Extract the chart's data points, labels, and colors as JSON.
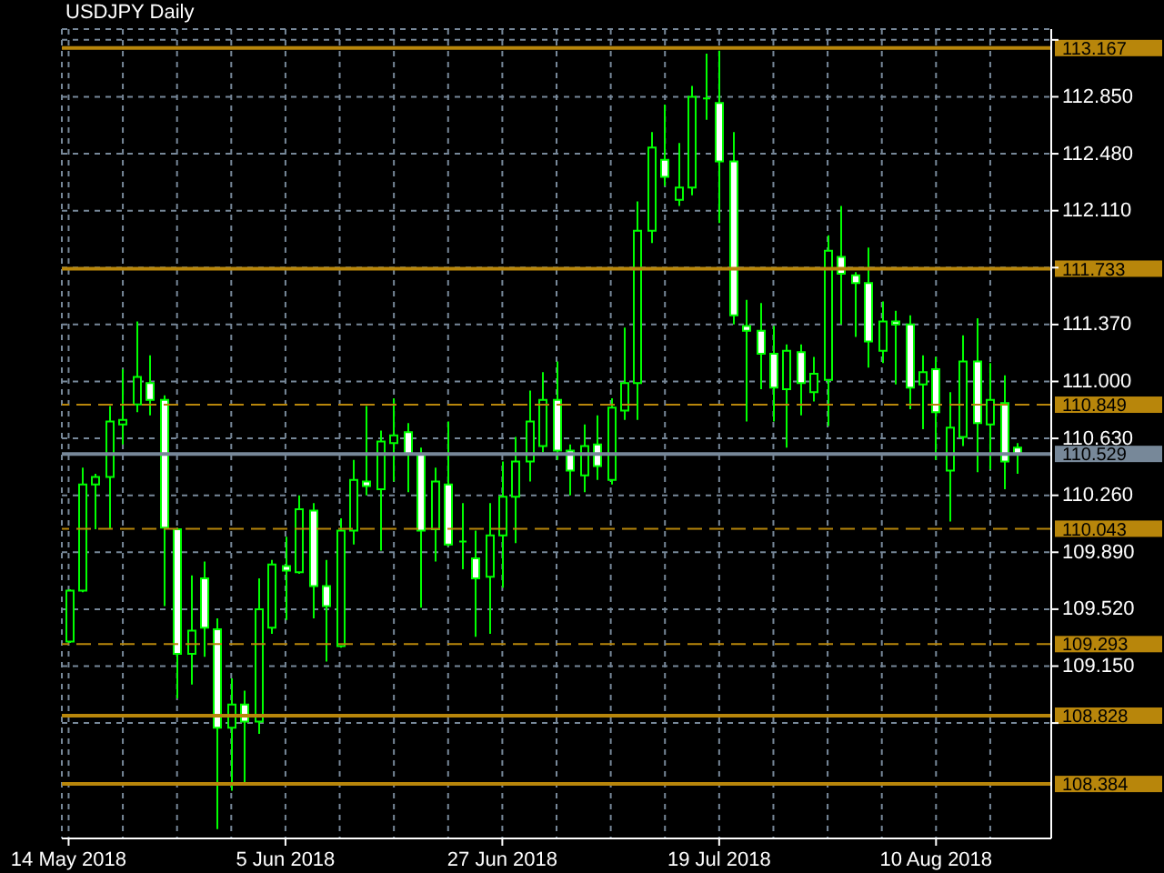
{
  "chart_data": {
    "type": "candlestick",
    "title": "USDJPY Daily",
    "categories": [
      "14 May 2018",
      null,
      null,
      null,
      null,
      null,
      null,
      null,
      null,
      null,
      null,
      null,
      null,
      null,
      null,
      null,
      "5 Jun 2018",
      null,
      null,
      null,
      null,
      null,
      null,
      null,
      null,
      null,
      null,
      null,
      null,
      null,
      null,
      null,
      "27 Jun 2018",
      null,
      null,
      null,
      null,
      null,
      null,
      null,
      null,
      null,
      null,
      null,
      null,
      null,
      null,
      null,
      "19 Jul 2018",
      null,
      null,
      null,
      null,
      null,
      null,
      null,
      null,
      null,
      null,
      null,
      null,
      null,
      null,
      null,
      "10 Aug 2018",
      null,
      null,
      null,
      null,
      null,
      null
    ],
    "ohlc": [
      [
        109.31,
        109.65,
        109.3,
        109.64
      ],
      [
        109.64,
        110.44,
        109.63,
        110.33
      ],
      [
        110.33,
        110.4,
        110.04,
        110.38
      ],
      [
        110.38,
        110.84,
        110.04,
        110.74
      ],
      [
        110.72,
        111.08,
        110.59,
        110.75
      ],
      [
        110.85,
        111.39,
        110.8,
        111.03
      ],
      [
        110.99,
        111.17,
        110.78,
        110.88
      ],
      [
        110.88,
        110.91,
        109.54,
        110.05
      ],
      [
        110.04,
        110.05,
        108.94,
        109.23
      ],
      [
        109.23,
        109.74,
        109.03,
        109.38
      ],
      [
        109.72,
        109.83,
        109.21,
        109.4
      ],
      [
        109.39,
        109.46,
        108.09,
        108.75
      ],
      [
        108.75,
        109.07,
        108.34,
        108.9
      ],
      [
        108.9,
        108.99,
        108.39,
        108.79
      ],
      [
        108.79,
        109.72,
        108.71,
        109.52
      ],
      [
        109.4,
        109.84,
        109.36,
        109.81
      ],
      [
        109.8,
        109.99,
        109.45,
        109.77
      ],
      [
        109.76,
        110.26,
        109.75,
        110.17
      ],
      [
        110.16,
        110.21,
        109.46,
        109.67
      ],
      [
        109.67,
        109.84,
        109.18,
        109.54
      ],
      [
        109.28,
        110.11,
        109.27,
        110.03
      ],
      [
        110.03,
        110.49,
        109.94,
        110.36
      ],
      [
        110.35,
        110.84,
        110.26,
        110.32
      ],
      [
        110.3,
        110.68,
        109.9,
        110.61
      ],
      [
        110.6,
        110.89,
        110.35,
        110.65
      ],
      [
        110.67,
        110.73,
        110.28,
        110.53
      ],
      [
        110.53,
        110.57,
        109.53,
        110.03
      ],
      [
        110.04,
        110.44,
        109.83,
        110.35
      ],
      [
        110.33,
        110.74,
        109.93,
        109.94
      ],
      [
        109.96,
        110.21,
        109.78,
        109.96
      ],
      [
        109.85,
        110.03,
        109.34,
        109.72
      ],
      [
        109.73,
        110.21,
        109.36,
        110.0
      ],
      [
        110.0,
        110.48,
        109.66,
        110.25
      ],
      [
        110.25,
        110.64,
        109.95,
        110.48
      ],
      [
        110.48,
        110.94,
        110.35,
        110.74
      ],
      [
        110.58,
        111.06,
        110.54,
        110.88
      ],
      [
        110.88,
        111.13,
        110.49,
        110.55
      ],
      [
        110.55,
        110.59,
        110.26,
        110.42
      ],
      [
        110.39,
        110.72,
        110.28,
        110.58
      ],
      [
        110.59,
        110.78,
        110.36,
        110.45
      ],
      [
        110.36,
        110.89,
        110.33,
        110.83
      ],
      [
        110.81,
        111.35,
        110.75,
        110.99
      ],
      [
        110.99,
        112.17,
        110.75,
        111.98
      ],
      [
        111.98,
        112.62,
        111.9,
        112.52
      ],
      [
        112.44,
        112.8,
        112.27,
        112.33
      ],
      [
        112.18,
        112.55,
        112.14,
        112.26
      ],
      [
        112.26,
        112.92,
        112.21,
        112.85
      ],
      [
        112.84,
        113.13,
        112.7,
        112.84
      ],
      [
        112.81,
        113.15,
        112.03,
        112.43
      ],
      [
        112.43,
        112.62,
        111.37,
        111.43
      ],
      [
        111.36,
        111.53,
        110.74,
        111.33
      ],
      [
        111.33,
        111.51,
        110.95,
        111.18
      ],
      [
        111.18,
        111.36,
        110.74,
        110.96
      ],
      [
        110.95,
        111.24,
        110.57,
        111.2
      ],
      [
        111.19,
        111.24,
        110.78,
        110.99
      ],
      [
        110.93,
        111.16,
        110.87,
        111.05
      ],
      [
        111.01,
        111.95,
        110.71,
        111.85
      ],
      [
        111.81,
        112.14,
        111.37,
        111.7
      ],
      [
        111.69,
        111.71,
        111.29,
        111.64
      ],
      [
        111.64,
        111.87,
        111.09,
        111.26
      ],
      [
        111.2,
        111.52,
        111.12,
        111.39
      ],
      [
        111.39,
        111.46,
        110.98,
        111.37
      ],
      [
        111.37,
        111.43,
        110.82,
        110.96
      ],
      [
        110.98,
        111.17,
        110.69,
        111.06
      ],
      [
        111.08,
        111.16,
        110.49,
        110.8
      ],
      [
        110.42,
        110.93,
        110.09,
        110.7
      ],
      [
        110.64,
        111.3,
        110.58,
        111.13
      ],
      [
        111.13,
        111.41,
        110.41,
        110.73
      ],
      [
        110.72,
        111.12,
        110.43,
        110.88
      ],
      [
        110.86,
        111.04,
        110.3,
        110.48
      ],
      [
        110.57,
        110.6,
        110.4,
        110.53
      ]
    ],
    "color": "#00ff00",
    "ylim": [
      108.03,
      113.29
    ],
    "yticks": [
      {
        "value": 108.78,
        "label": null
      },
      {
        "value": 109.15,
        "label": "109.150"
      },
      {
        "value": 109.52,
        "label": "109.520"
      },
      {
        "value": 109.89,
        "label": "109.890"
      },
      {
        "value": 110.26,
        "label": "110.260"
      },
      {
        "value": 110.63,
        "label": "110.630"
      },
      {
        "value": 111.0,
        "label": "111.000"
      },
      {
        "value": 111.37,
        "label": "111.370"
      },
      {
        "value": 111.74,
        "label": null
      },
      {
        "value": 112.11,
        "label": "112.110"
      },
      {
        "value": 112.48,
        "label": "112.480"
      },
      {
        "value": 112.85,
        "label": "112.850"
      },
      {
        "value": 113.22,
        "label": null
      }
    ],
    "grid": true,
    "ref_lines": [
      {
        "axis": "y",
        "value": 113.167,
        "label": "113.167",
        "color": "#b8860b",
        "line_style": "solid"
      },
      {
        "axis": "y",
        "value": 111.733,
        "label": "111.733",
        "color": "#b8860b",
        "line_style": "solid"
      },
      {
        "axis": "y",
        "value": 110.849,
        "label": "110.849",
        "color": "#b8860b",
        "line_style": "dashed"
      },
      {
        "axis": "y",
        "value": 110.529,
        "label": "110.529",
        "color": "#778899",
        "line_style": "solid"
      },
      {
        "axis": "y",
        "value": 110.043,
        "label": "110.043",
        "color": "#b8860b",
        "line_style": "dashed"
      },
      {
        "axis": "y",
        "value": 109.293,
        "label": "109.293",
        "color": "#b8860b",
        "line_style": "dashed"
      },
      {
        "axis": "y",
        "value": 108.828,
        "label": "108.828",
        "color": "#b8860b",
        "line_style": "solid"
      },
      {
        "axis": "y",
        "value": 108.384,
        "label": "108.384",
        "color": "#b8860b",
        "line_style": "solid"
      }
    ]
  }
}
